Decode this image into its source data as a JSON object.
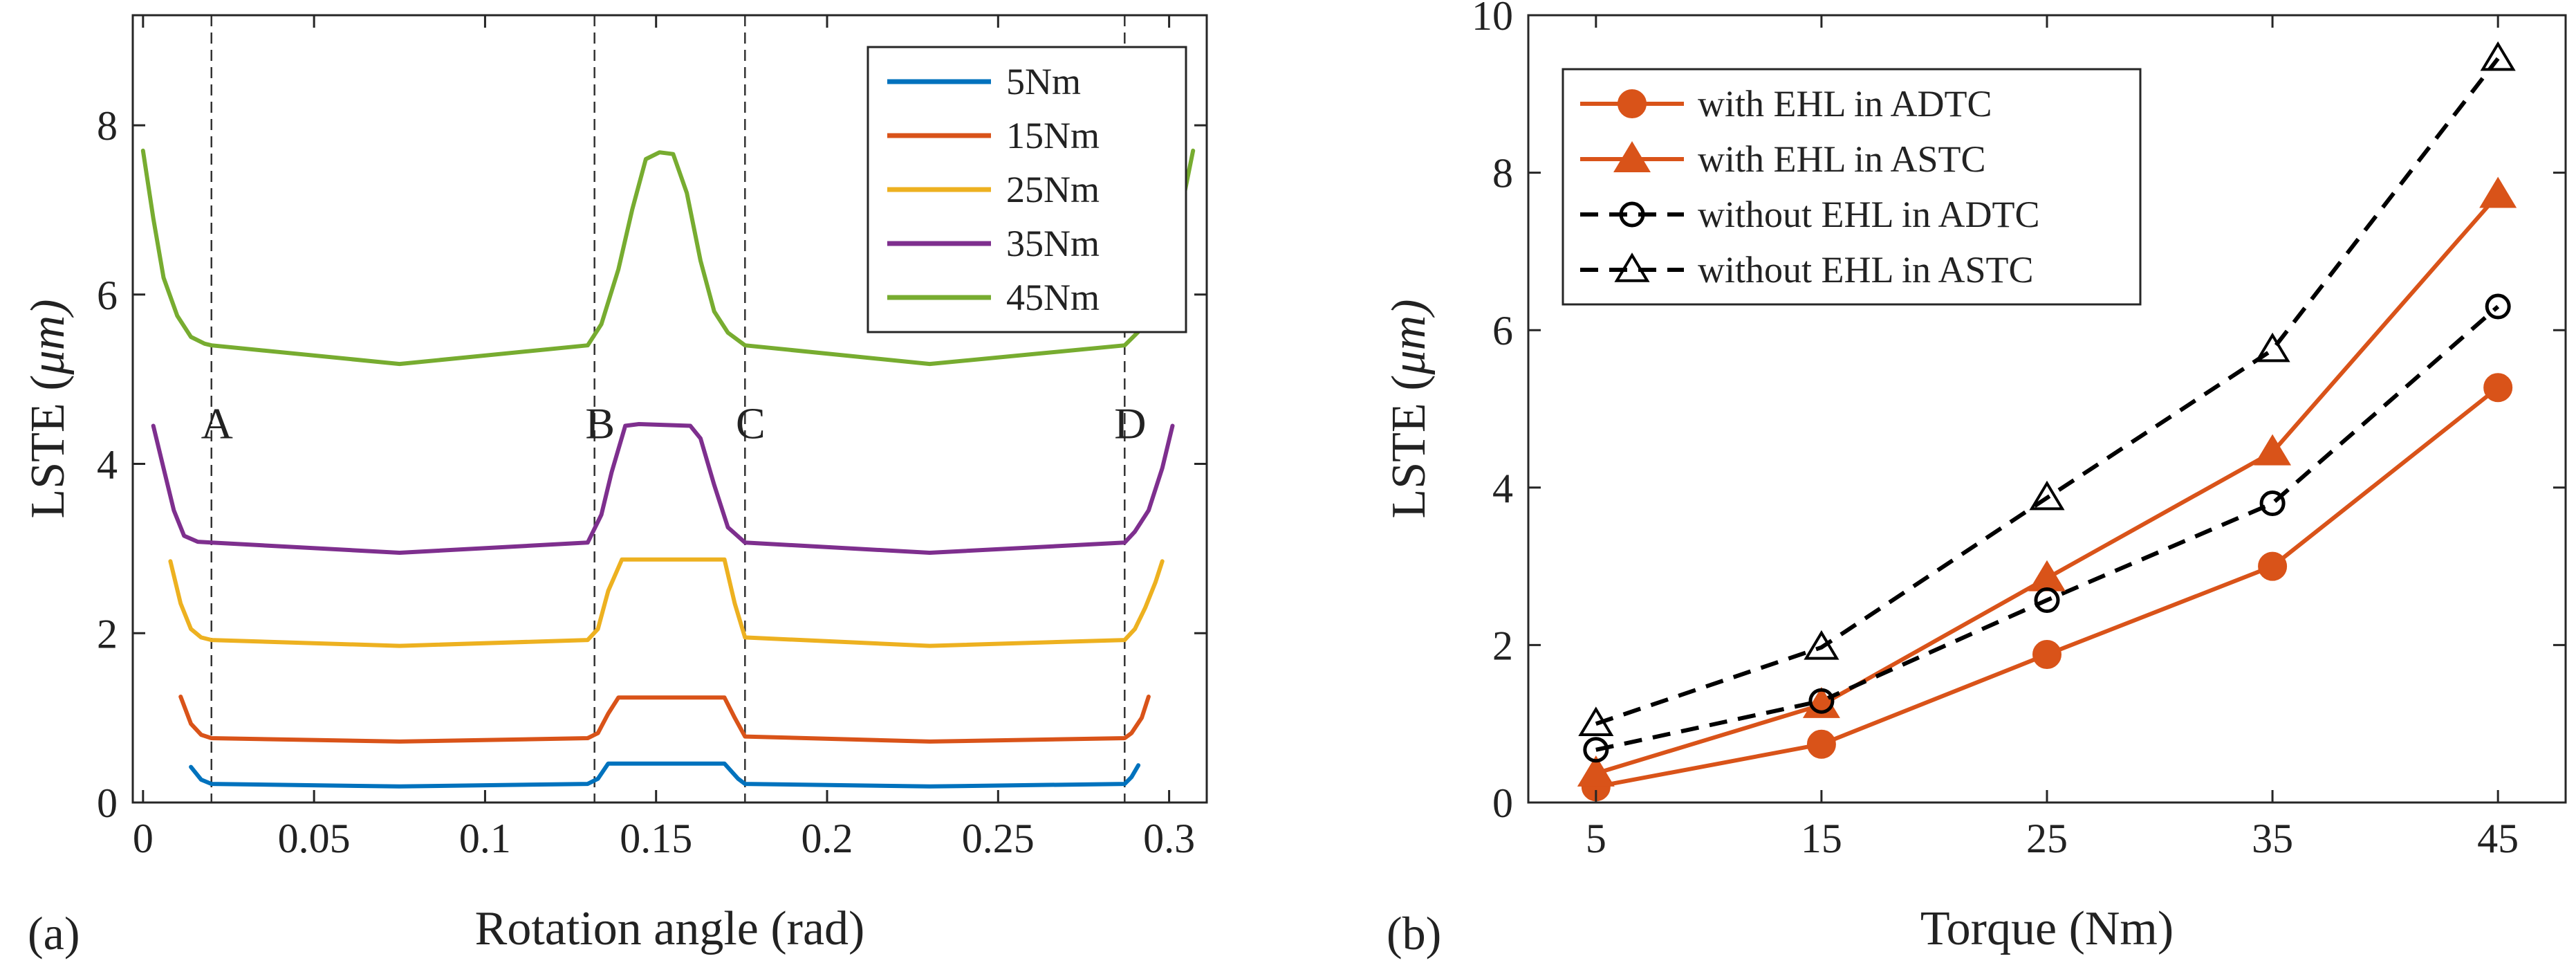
{
  "panels": [
    {
      "panel_label": "(a)",
      "chart_data": {
        "type": "line",
        "xlabel": "Rotation angle (rad)",
        "ylabel_main": "LSTE (",
        "ylabel_mu": "μ",
        "ylabel_unit": "m)",
        "xlim": [
          -0.003,
          0.311
        ],
        "ylim": [
          0,
          9.3
        ],
        "xticks": [
          0,
          0.05,
          0.1,
          0.15,
          0.2,
          0.25,
          0.3
        ],
        "xtick_labels": [
          "0",
          "0.05",
          "0.1",
          "0.15",
          "0.2",
          "0.25",
          "0.3"
        ],
        "yticks": [
          0,
          2,
          4,
          6,
          8
        ],
        "ytick_labels": [
          "0",
          "2",
          "4",
          "6",
          "8"
        ],
        "legend_position": "top-right",
        "vlines": [
          {
            "x": 0.02,
            "label": "A"
          },
          {
            "x": 0.132,
            "label": "B"
          },
          {
            "x": 0.176,
            "label": "C"
          },
          {
            "x": 0.287,
            "label": "D"
          }
        ],
        "series": [
          {
            "name": "5Nm",
            "color": "#0072BD",
            "x": [
              0.014,
              0.017,
              0.02,
              0.075,
              0.13,
              0.133,
              0.136,
              0.166,
              0.17,
              0.174,
              0.176,
              0.23,
              0.287,
              0.289,
              0.291
            ],
            "y": [
              0.42,
              0.27,
              0.22,
              0.19,
              0.22,
              0.28,
              0.46,
              0.46,
              0.46,
              0.28,
              0.22,
              0.19,
              0.22,
              0.3,
              0.44
            ]
          },
          {
            "name": "15Nm",
            "color": "#D95319",
            "x": [
              0.011,
              0.014,
              0.017,
              0.02,
              0.075,
              0.13,
              0.133,
              0.136,
              0.139,
              0.165,
              0.17,
              0.173,
              0.176,
              0.23,
              0.287,
              0.289,
              0.292,
              0.294
            ],
            "y": [
              1.25,
              0.93,
              0.8,
              0.76,
              0.72,
              0.76,
              0.82,
              1.05,
              1.24,
              1.24,
              1.24,
              1.0,
              0.78,
              0.72,
              0.76,
              0.82,
              1.0,
              1.25
            ]
          },
          {
            "name": "25Nm",
            "color": "#EDB120",
            "x": [
              0.008,
              0.011,
              0.014,
              0.017,
              0.02,
              0.075,
              0.13,
              0.133,
              0.136,
              0.14,
              0.165,
              0.17,
              0.173,
              0.176,
              0.23,
              0.287,
              0.29,
              0.293,
              0.296,
              0.298
            ],
            "y": [
              2.85,
              2.35,
              2.05,
              1.95,
              1.92,
              1.85,
              1.92,
              2.05,
              2.5,
              2.87,
              2.87,
              2.87,
              2.35,
              1.95,
              1.85,
              1.92,
              2.05,
              2.3,
              2.6,
              2.85
            ]
          },
          {
            "name": "35Nm",
            "color": "#7E2F8E",
            "x": [
              0.003,
              0.006,
              0.009,
              0.012,
              0.016,
              0.02,
              0.075,
              0.13,
              0.134,
              0.137,
              0.141,
              0.145,
              0.16,
              0.163,
              0.167,
              0.171,
              0.176,
              0.23,
              0.287,
              0.29,
              0.294,
              0.298,
              0.301
            ],
            "y": [
              4.45,
              3.95,
              3.45,
              3.15,
              3.08,
              3.07,
              2.95,
              3.07,
              3.4,
              3.9,
              4.45,
              4.47,
              4.45,
              4.3,
              3.75,
              3.25,
              3.07,
              2.95,
              3.07,
              3.2,
              3.45,
              3.95,
              4.45
            ]
          },
          {
            "name": "45Nm",
            "color": "#77AC30",
            "x": [
              0.0,
              0.003,
              0.006,
              0.01,
              0.014,
              0.018,
              0.02,
              0.075,
              0.13,
              0.134,
              0.139,
              0.143,
              0.147,
              0.151,
              0.155,
              0.159,
              0.163,
              0.167,
              0.171,
              0.176,
              0.23,
              0.287,
              0.292,
              0.296,
              0.3,
              0.304,
              0.307
            ],
            "y": [
              7.7,
              6.9,
              6.2,
              5.75,
              5.5,
              5.42,
              5.4,
              5.18,
              5.4,
              5.65,
              6.3,
              7.0,
              7.6,
              7.68,
              7.66,
              7.2,
              6.4,
              5.8,
              5.55,
              5.4,
              5.18,
              5.4,
              5.6,
              5.95,
              6.5,
              7.1,
              7.7
            ]
          }
        ]
      }
    },
    {
      "panel_label": "(b)",
      "chart_data": {
        "type": "line",
        "xlabel": "Torque (Nm)",
        "ylabel_main": "LSTE (",
        "ylabel_mu": "μ",
        "ylabel_unit": "m)",
        "xlim": [
          2,
          48
        ],
        "ylim": [
          0,
          10
        ],
        "xticks": [
          5,
          15,
          25,
          35,
          45
        ],
        "xtick_labels": [
          "5",
          "15",
          "25",
          "35",
          "45"
        ],
        "yticks": [
          0,
          2,
          4,
          6,
          8,
          10
        ],
        "ytick_labels": [
          "0",
          "2",
          "4",
          "6",
          "8",
          "10"
        ],
        "legend_position": "top-left",
        "x": [
          5,
          15,
          25,
          35,
          45
        ],
        "series": [
          {
            "name": "with EHL in ADTC",
            "color": "#D95319",
            "dash": "solid",
            "marker": "circle-filled",
            "values": [
              0.2,
              0.74,
              1.88,
              3.0,
              5.27
            ]
          },
          {
            "name": "with EHL in ASTC",
            "color": "#D95319",
            "dash": "solid",
            "marker": "triangle-filled",
            "values": [
              0.37,
              1.24,
              2.85,
              4.45,
              7.72
            ]
          },
          {
            "name": "without EHL in ADTC",
            "color": "#000000",
            "dash": "dashed",
            "marker": "circle-open",
            "values": [
              0.67,
              1.29,
              2.57,
              3.8,
              6.3
            ]
          },
          {
            "name": "without EHL in ASTC",
            "color": "#000000",
            "dash": "dashed",
            "marker": "triangle-open",
            "values": [
              1.0,
              1.97,
              3.87,
              5.75,
              9.45
            ]
          }
        ]
      }
    }
  ]
}
